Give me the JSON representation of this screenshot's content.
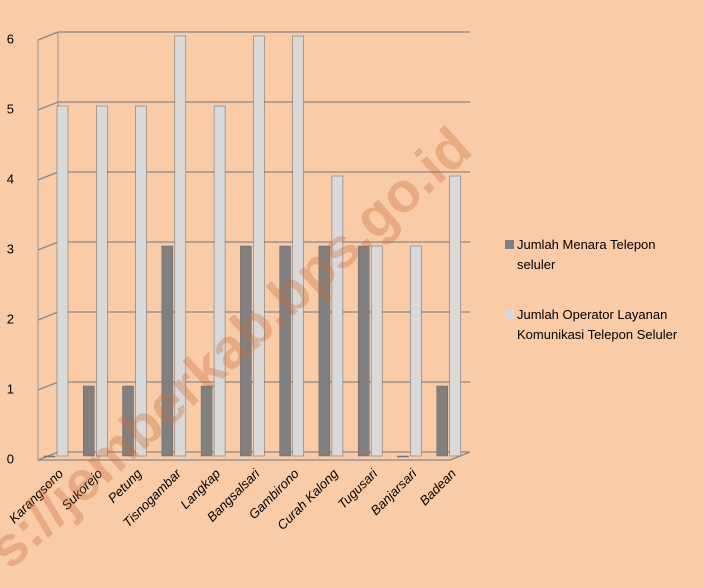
{
  "chart_data": {
    "type": "bar",
    "categories": [
      "Karangsono",
      "Sukorejo",
      "Petung",
      "Tisnogambar",
      "Langkap",
      "Bangsalsari",
      "Gambirono",
      "Curah Kalong",
      "Tugusari",
      "Banjarsari",
      "Badean"
    ],
    "series": [
      {
        "name": "Jumlah Menara Telepon seluler",
        "color": "#808080",
        "values": [
          0,
          1,
          1,
          3,
          1,
          3,
          3,
          3,
          3,
          0,
          1
        ]
      },
      {
        "name": "Jumlah Operator Layanan Komunikasi Telepon Seluler",
        "color": "#d9d9d9",
        "values": [
          5,
          5,
          5,
          6,
          5,
          6,
          6,
          4,
          3,
          3,
          4
        ]
      }
    ],
    "ylim": [
      0,
      6
    ],
    "yticks": [
      0,
      1,
      2,
      3,
      4,
      5,
      6
    ],
    "grid": true,
    "legend": "right",
    "watermark": "s://jemberkab.bps.go.id"
  }
}
